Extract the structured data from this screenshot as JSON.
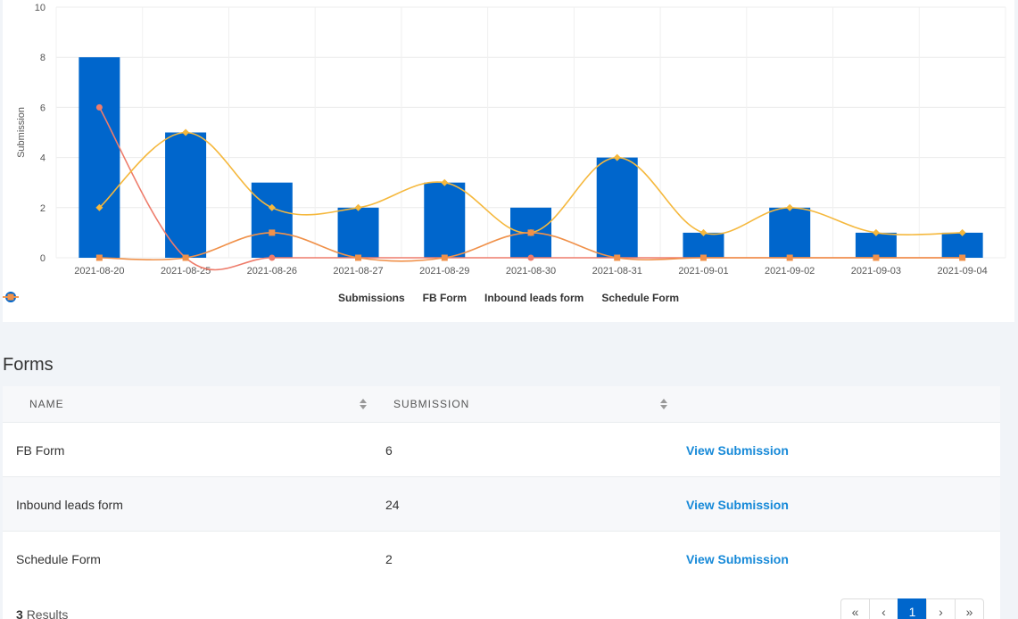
{
  "chart_data": {
    "type": "bar",
    "ylabel": "Submission",
    "ylim": [
      0,
      10
    ],
    "yticks": [
      "0",
      "2",
      "4",
      "6",
      "8",
      "10"
    ],
    "categories": [
      "2021-08-20",
      "2021-08-25",
      "2021-08-26",
      "2021-08-27",
      "2021-08-29",
      "2021-08-30",
      "2021-08-31",
      "2021-09-01",
      "2021-09-02",
      "2021-09-03",
      "2021-09-04"
    ],
    "series": [
      {
        "name": "Submissions",
        "type": "bar",
        "color": "#0066cc",
        "values": [
          8,
          5,
          3,
          2,
          3,
          2,
          4,
          1,
          2,
          1,
          1
        ]
      },
      {
        "name": "FB Form",
        "type": "line",
        "marker": "circle",
        "color": "#ee7c6b",
        "values": [
          6,
          0,
          0,
          0,
          0,
          0,
          0,
          0,
          0,
          0,
          0
        ]
      },
      {
        "name": "Inbound leads form",
        "type": "line",
        "marker": "diamond",
        "color": "#f5b83d",
        "values": [
          2,
          5,
          2,
          2,
          3,
          1,
          4,
          1,
          2,
          1,
          1
        ]
      },
      {
        "name": "Schedule Form",
        "type": "line",
        "marker": "square",
        "color": "#f0914a",
        "values": [
          0,
          0,
          1,
          0,
          0,
          1,
          0,
          0,
          0,
          0,
          0
        ]
      }
    ],
    "legend_position": "bottom",
    "grid": true
  },
  "page": {
    "title": "Forms"
  },
  "table": {
    "headers": {
      "name": "NAME",
      "submission": "SUBMISSION"
    },
    "rows": [
      {
        "name": "FB Form",
        "submission": "6",
        "action": "View Submission"
      },
      {
        "name": "Inbound leads form",
        "submission": "24",
        "action": "View Submission"
      },
      {
        "name": "Schedule Form",
        "submission": "2",
        "action": "View Submission"
      }
    ]
  },
  "footer": {
    "results_count": "3",
    "results_label": "Results"
  },
  "pagination": {
    "first": "«",
    "prev": "‹",
    "current": "1",
    "next": "›",
    "last": "»"
  }
}
